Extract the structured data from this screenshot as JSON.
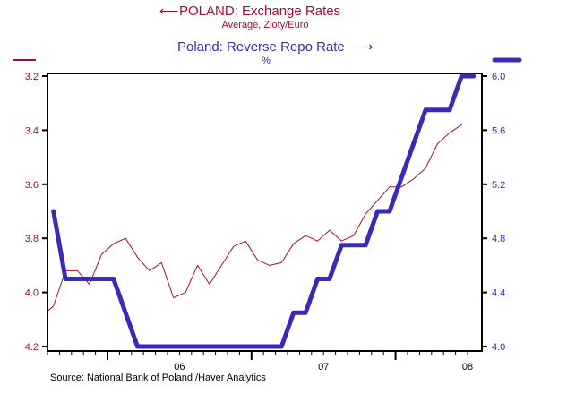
{
  "chart_data": {
    "type": "line",
    "titles": [
      {
        "text": "POLAND: Exchange Rates",
        "subtitle": "Average, Zloty/Euro",
        "axis": "left",
        "arrow": "left",
        "color": "#a0102a"
      },
      {
        "text": "Poland: Reverse Repo Rate",
        "subtitle": "%",
        "axis": "right",
        "arrow": "right",
        "color": "#3a2ab8"
      }
    ],
    "x": [
      "2005-07",
      "2005-08",
      "2005-09",
      "2005-10",
      "2005-11",
      "2005-12",
      "2006-01",
      "2006-02",
      "2006-03",
      "2006-04",
      "2006-05",
      "2006-06",
      "2006-07",
      "2006-08",
      "2006-09",
      "2006-10",
      "2006-11",
      "2006-12",
      "2007-01",
      "2007-02",
      "2007-03",
      "2007-04",
      "2007-05",
      "2007-06",
      "2007-07",
      "2007-08",
      "2007-09",
      "2007-10",
      "2007-11",
      "2007-12",
      "2008-01",
      "2008-02",
      "2008-03",
      "2008-04",
      "2008-05",
      "2008-06",
      "2008-07"
    ],
    "x_tick_labels": [
      {
        "label": "06",
        "year": 2006
      },
      {
        "label": "07",
        "year": 2007
      },
      {
        "label": "08",
        "year": 2008
      }
    ],
    "series": [
      {
        "name": "POLAND: Exchange Rates",
        "axis": "left",
        "color": "#a0102a",
        "width": "thin",
        "values": [
          4.09,
          4.05,
          3.92,
          3.92,
          3.97,
          3.86,
          3.82,
          3.8,
          3.87,
          3.92,
          3.89,
          4.02,
          4.0,
          3.9,
          3.97,
          3.9,
          3.83,
          3.81,
          3.88,
          3.9,
          3.89,
          3.82,
          3.79,
          3.81,
          3.77,
          3.81,
          3.79,
          3.71,
          3.66,
          3.61,
          3.61,
          3.58,
          3.54,
          3.45,
          3.41,
          3.38,
          null
        ]
      },
      {
        "name": "Poland: Reverse Repo Rate",
        "axis": "right",
        "color": "#3a2ab8",
        "width": "thick",
        "values": [
          null,
          5.0,
          4.5,
          4.5,
          4.5,
          4.5,
          4.5,
          4.25,
          4.0,
          4.0,
          4.0,
          4.0,
          4.0,
          4.0,
          4.0,
          4.0,
          4.0,
          4.0,
          4.0,
          4.0,
          4.0,
          4.25,
          4.25,
          4.5,
          4.5,
          4.75,
          4.75,
          4.75,
          5.0,
          5.0,
          5.25,
          5.5,
          5.75,
          5.75,
          5.75,
          6.0,
          6.0
        ]
      }
    ],
    "left_axis": {
      "range": [
        3.2,
        4.2
      ],
      "inverted": true,
      "ticks": [
        "3.2",
        "3.4",
        "3.6",
        "3.8",
        "4.0",
        "4.2"
      ]
    },
    "right_axis": {
      "range": [
        4.0,
        6.0
      ],
      "ticks": [
        "6.0",
        "5.6",
        "5.2",
        "4.8",
        "4.4",
        "4.0"
      ]
    },
    "grid": false,
    "source": "Source:  National Bank of Poland /Haver Analytics"
  }
}
